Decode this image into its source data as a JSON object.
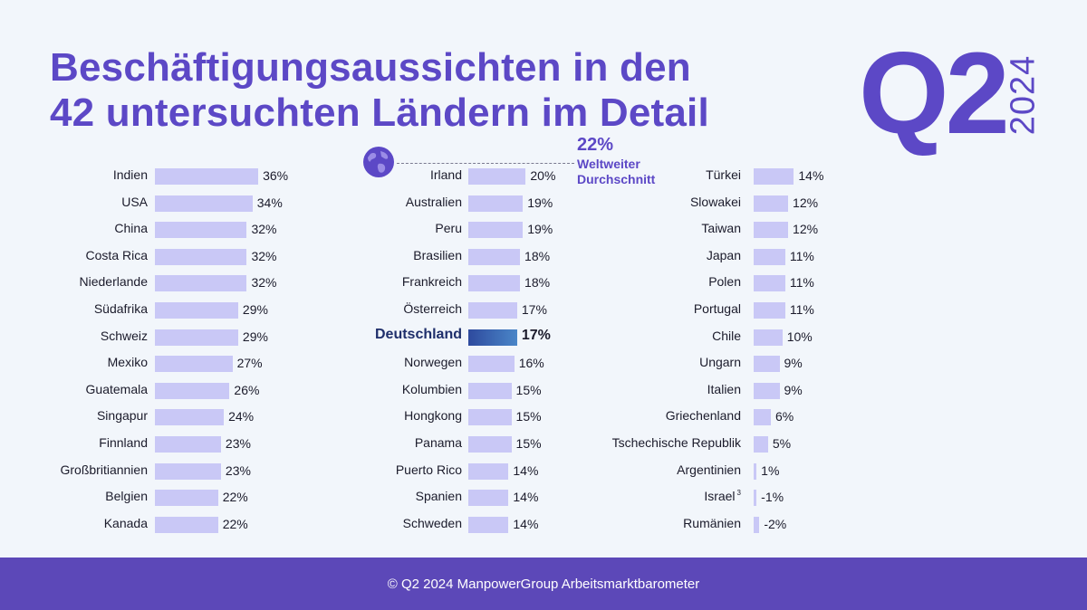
{
  "title_line1": "Beschäftigungsaussichten in den",
  "title_line2": "42 untersuchten Ländern im Detail",
  "quarter": "Q2",
  "year": "2024",
  "average": {
    "value": "22%",
    "label_line1": "Weltweiter",
    "label_line2": "Durchschnitt"
  },
  "footer": "© Q2 2024 ManpowerGroup Arbeitsmarktbarometer",
  "colors": {
    "accent": "#5c48c6",
    "bar": "#c9c8f6",
    "highlight_start": "#2e4a9e",
    "highlight_end": "#4a86c8",
    "footer_bg": "#5c48b8"
  },
  "chart_data": {
    "type": "bar",
    "orientation": "horizontal",
    "unit": "%",
    "xlim": [
      -2,
      36
    ],
    "highlight": "Deutschland",
    "average": 22,
    "columns": [
      [
        {
          "country": "Indien",
          "value": 36,
          "label": "36%"
        },
        {
          "country": "USA",
          "value": 34,
          "label": "34%"
        },
        {
          "country": "China",
          "value": 32,
          "label": "32%"
        },
        {
          "country": "Costa Rica",
          "value": 32,
          "label": "32%"
        },
        {
          "country": "Niederlande",
          "value": 32,
          "label": "32%"
        },
        {
          "country": "Südafrika",
          "value": 29,
          "label": "29%"
        },
        {
          "country": "Schweiz",
          "value": 29,
          "label": "29%"
        },
        {
          "country": "Mexiko",
          "value": 27,
          "label": "27%"
        },
        {
          "country": "Guatemala",
          "value": 26,
          "label": "26%"
        },
        {
          "country": "Singapur",
          "value": 24,
          "label": "24%"
        },
        {
          "country": "Finnland",
          "value": 23,
          "label": "23%"
        },
        {
          "country": "Großbritiannien",
          "value": 23,
          "label": "23%"
        },
        {
          "country": "Belgien",
          "value": 22,
          "label": "22%"
        },
        {
          "country": "Kanada",
          "value": 22,
          "label": "22%"
        }
      ],
      [
        {
          "country": "Irland",
          "value": 20,
          "label": "20%"
        },
        {
          "country": "Australien",
          "value": 19,
          "label": "19%"
        },
        {
          "country": "Peru",
          "value": 19,
          "label": "19%"
        },
        {
          "country": "Brasilien",
          "value": 18,
          "label": "18%"
        },
        {
          "country": "Frankreich",
          "value": 18,
          "label": "18%"
        },
        {
          "country": "Österreich",
          "value": 17,
          "label": "17%"
        },
        {
          "country": "Deutschland",
          "value": 17,
          "label": "17%"
        },
        {
          "country": "Norwegen",
          "value": 16,
          "label": "16%"
        },
        {
          "country": "Kolumbien",
          "value": 15,
          "label": "15%"
        },
        {
          "country": "Hongkong",
          "value": 15,
          "label": "15%"
        },
        {
          "country": "Panama",
          "value": 15,
          "label": "15%"
        },
        {
          "country": "Puerto Rico",
          "value": 14,
          "label": "14%"
        },
        {
          "country": "Spanien",
          "value": 14,
          "label": "14%"
        },
        {
          "country": "Schweden",
          "value": 14,
          "label": "14%"
        }
      ],
      [
        {
          "country": "Türkei",
          "value": 14,
          "label": "14%"
        },
        {
          "country": "Slowakei",
          "value": 12,
          "label": "12%"
        },
        {
          "country": "Taiwan",
          "value": 12,
          "label": "12%"
        },
        {
          "country": "Japan",
          "value": 11,
          "label": "11%"
        },
        {
          "country": "Polen",
          "value": 11,
          "label": "11%"
        },
        {
          "country": "Portugal",
          "value": 11,
          "label": "11%"
        },
        {
          "country": "Chile",
          "value": 10,
          "label": "10%"
        },
        {
          "country": "Ungarn",
          "value": 9,
          "label": "9%"
        },
        {
          "country": "Italien",
          "value": 9,
          "label": "9%"
        },
        {
          "country": "Griechenland",
          "value": 6,
          "label": "6%"
        },
        {
          "country": "Tschechische Republik",
          "value": 5,
          "label": "5%"
        },
        {
          "country": "Argentinien",
          "value": 1,
          "label": "1%"
        },
        {
          "country": "Israel",
          "value": -1,
          "label": "-1%",
          "footnote": "3"
        },
        {
          "country": "Rumänien",
          "value": -2,
          "label": "-2%"
        }
      ]
    ]
  }
}
